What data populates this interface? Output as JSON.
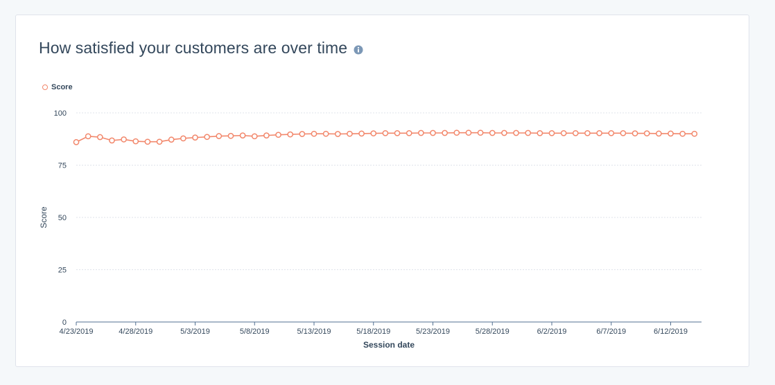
{
  "card": {
    "title": "How satisfied your customers are over time",
    "info_icon": "info-icon"
  },
  "chart_data": {
    "type": "line",
    "title": "How satisfied your customers are over time",
    "xlabel": "Session date",
    "ylabel": "Score",
    "ylim": [
      0,
      100
    ],
    "yticks": [
      0,
      25,
      50,
      75,
      100
    ],
    "x_tick_labels": [
      "4/23/2019",
      "4/28/2019",
      "5/3/2019",
      "5/8/2019",
      "5/13/2019",
      "5/18/2019",
      "5/23/2019",
      "5/28/2019",
      "6/2/2019",
      "6/7/2019",
      "6/12/2019"
    ],
    "x_start": "4/23/2019",
    "grid": true,
    "legend_position": "top-left",
    "series": [
      {
        "name": "Score",
        "color": "#f2876b",
        "x": [
          "4/23/2019",
          "4/24/2019",
          "4/25/2019",
          "4/26/2019",
          "4/27/2019",
          "4/28/2019",
          "4/29/2019",
          "4/30/2019",
          "5/1/2019",
          "5/2/2019",
          "5/3/2019",
          "5/4/2019",
          "5/5/2019",
          "5/6/2019",
          "5/7/2019",
          "5/8/2019",
          "5/9/2019",
          "5/10/2019",
          "5/11/2019",
          "5/12/2019",
          "5/13/2019",
          "5/14/2019",
          "5/15/2019",
          "5/16/2019",
          "5/17/2019",
          "5/18/2019",
          "5/19/2019",
          "5/20/2019",
          "5/21/2019",
          "5/22/2019",
          "5/23/2019",
          "5/24/2019",
          "5/25/2019",
          "5/26/2019",
          "5/27/2019",
          "5/28/2019",
          "5/29/2019",
          "5/30/2019",
          "5/31/2019",
          "6/1/2019",
          "6/2/2019",
          "6/3/2019",
          "6/4/2019",
          "6/5/2019",
          "6/6/2019",
          "6/7/2019",
          "6/8/2019",
          "6/9/2019",
          "6/10/2019",
          "6/11/2019",
          "6/12/2019",
          "6/13/2019",
          "6/14/2019"
        ],
        "values": [
          86,
          88.8,
          88.4,
          86.8,
          87.3,
          86.4,
          86.2,
          86.2,
          87.2,
          87.8,
          88.2,
          88.5,
          88.9,
          89.0,
          89.2,
          88.8,
          89.2,
          89.5,
          89.7,
          89.9,
          90.0,
          90.0,
          89.9,
          90.0,
          90.1,
          90.2,
          90.3,
          90.3,
          90.3,
          90.4,
          90.4,
          90.4,
          90.5,
          90.5,
          90.5,
          90.4,
          90.4,
          90.4,
          90.4,
          90.3,
          90.3,
          90.3,
          90.3,
          90.3,
          90.3,
          90.3,
          90.3,
          90.2,
          90.2,
          90.1,
          90.1,
          90.0,
          90.0
        ]
      }
    ]
  }
}
